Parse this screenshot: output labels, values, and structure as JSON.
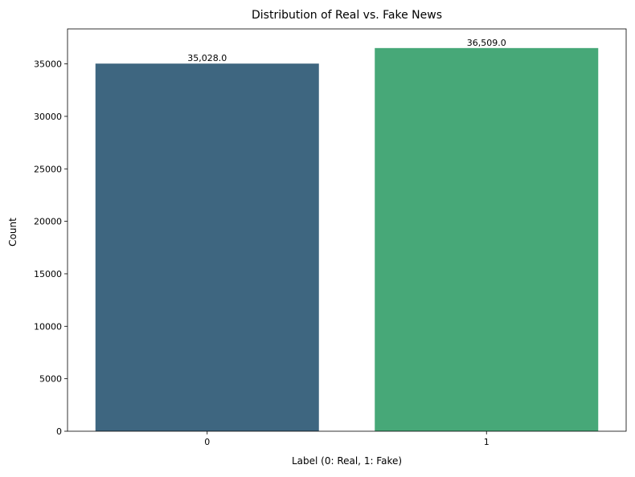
{
  "chart_data": {
    "type": "bar",
    "title": "Distribution of Real vs. Fake News",
    "xlabel": "Label (0: Real, 1: Fake)",
    "ylabel": "Count",
    "categories": [
      "0",
      "1"
    ],
    "values": [
      35028,
      36509
    ],
    "data_labels": [
      "35,028.0",
      "36,509.0"
    ],
    "bar_colors": [
      "#3e6680",
      "#47a878"
    ],
    "ylim": [
      0,
      38333
    ],
    "yticks": [
      0,
      5000,
      10000,
      15000,
      20000,
      25000,
      30000,
      35000
    ],
    "ytick_labels": [
      "0",
      "5000",
      "10000",
      "15000",
      "20000",
      "25000",
      "30000",
      "35000"
    ],
    "grid": false,
    "legend": "none"
  }
}
